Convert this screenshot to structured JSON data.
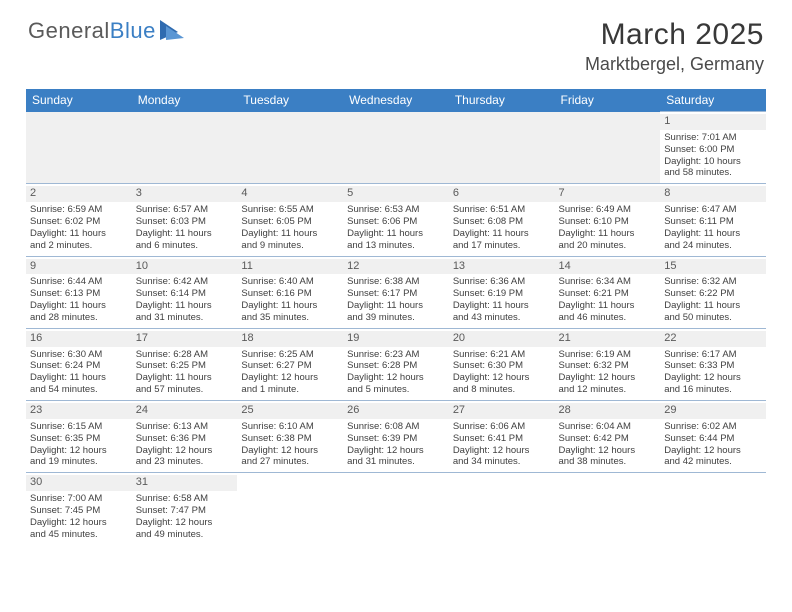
{
  "brand": {
    "name1": "General",
    "name2": "Blue"
  },
  "title": "March 2025",
  "location": "Marktbergel, Germany",
  "colors": {
    "header_bg": "#3b7fc4",
    "header_text": "#ffffff",
    "daynum_bg": "#f0f0f0",
    "border": "#9fb8d4",
    "text": "#404040"
  },
  "weekdays": [
    "Sunday",
    "Monday",
    "Tuesday",
    "Wednesday",
    "Thursday",
    "Friday",
    "Saturday"
  ],
  "first_day_col": 6,
  "days": [
    {
      "n": "1",
      "sunrise": "Sunrise: 7:01 AM",
      "sunset": "Sunset: 6:00 PM",
      "day1": "Daylight: 10 hours",
      "day2": "and 58 minutes."
    },
    {
      "n": "2",
      "sunrise": "Sunrise: 6:59 AM",
      "sunset": "Sunset: 6:02 PM",
      "day1": "Daylight: 11 hours",
      "day2": "and 2 minutes."
    },
    {
      "n": "3",
      "sunrise": "Sunrise: 6:57 AM",
      "sunset": "Sunset: 6:03 PM",
      "day1": "Daylight: 11 hours",
      "day2": "and 6 minutes."
    },
    {
      "n": "4",
      "sunrise": "Sunrise: 6:55 AM",
      "sunset": "Sunset: 6:05 PM",
      "day1": "Daylight: 11 hours",
      "day2": "and 9 minutes."
    },
    {
      "n": "5",
      "sunrise": "Sunrise: 6:53 AM",
      "sunset": "Sunset: 6:06 PM",
      "day1": "Daylight: 11 hours",
      "day2": "and 13 minutes."
    },
    {
      "n": "6",
      "sunrise": "Sunrise: 6:51 AM",
      "sunset": "Sunset: 6:08 PM",
      "day1": "Daylight: 11 hours",
      "day2": "and 17 minutes."
    },
    {
      "n": "7",
      "sunrise": "Sunrise: 6:49 AM",
      "sunset": "Sunset: 6:10 PM",
      "day1": "Daylight: 11 hours",
      "day2": "and 20 minutes."
    },
    {
      "n": "8",
      "sunrise": "Sunrise: 6:47 AM",
      "sunset": "Sunset: 6:11 PM",
      "day1": "Daylight: 11 hours",
      "day2": "and 24 minutes."
    },
    {
      "n": "9",
      "sunrise": "Sunrise: 6:44 AM",
      "sunset": "Sunset: 6:13 PM",
      "day1": "Daylight: 11 hours",
      "day2": "and 28 minutes."
    },
    {
      "n": "10",
      "sunrise": "Sunrise: 6:42 AM",
      "sunset": "Sunset: 6:14 PM",
      "day1": "Daylight: 11 hours",
      "day2": "and 31 minutes."
    },
    {
      "n": "11",
      "sunrise": "Sunrise: 6:40 AM",
      "sunset": "Sunset: 6:16 PM",
      "day1": "Daylight: 11 hours",
      "day2": "and 35 minutes."
    },
    {
      "n": "12",
      "sunrise": "Sunrise: 6:38 AM",
      "sunset": "Sunset: 6:17 PM",
      "day1": "Daylight: 11 hours",
      "day2": "and 39 minutes."
    },
    {
      "n": "13",
      "sunrise": "Sunrise: 6:36 AM",
      "sunset": "Sunset: 6:19 PM",
      "day1": "Daylight: 11 hours",
      "day2": "and 43 minutes."
    },
    {
      "n": "14",
      "sunrise": "Sunrise: 6:34 AM",
      "sunset": "Sunset: 6:21 PM",
      "day1": "Daylight: 11 hours",
      "day2": "and 46 minutes."
    },
    {
      "n": "15",
      "sunrise": "Sunrise: 6:32 AM",
      "sunset": "Sunset: 6:22 PM",
      "day1": "Daylight: 11 hours",
      "day2": "and 50 minutes."
    },
    {
      "n": "16",
      "sunrise": "Sunrise: 6:30 AM",
      "sunset": "Sunset: 6:24 PM",
      "day1": "Daylight: 11 hours",
      "day2": "and 54 minutes."
    },
    {
      "n": "17",
      "sunrise": "Sunrise: 6:28 AM",
      "sunset": "Sunset: 6:25 PM",
      "day1": "Daylight: 11 hours",
      "day2": "and 57 minutes."
    },
    {
      "n": "18",
      "sunrise": "Sunrise: 6:25 AM",
      "sunset": "Sunset: 6:27 PM",
      "day1": "Daylight: 12 hours",
      "day2": "and 1 minute."
    },
    {
      "n": "19",
      "sunrise": "Sunrise: 6:23 AM",
      "sunset": "Sunset: 6:28 PM",
      "day1": "Daylight: 12 hours",
      "day2": "and 5 minutes."
    },
    {
      "n": "20",
      "sunrise": "Sunrise: 6:21 AM",
      "sunset": "Sunset: 6:30 PM",
      "day1": "Daylight: 12 hours",
      "day2": "and 8 minutes."
    },
    {
      "n": "21",
      "sunrise": "Sunrise: 6:19 AM",
      "sunset": "Sunset: 6:32 PM",
      "day1": "Daylight: 12 hours",
      "day2": "and 12 minutes."
    },
    {
      "n": "22",
      "sunrise": "Sunrise: 6:17 AM",
      "sunset": "Sunset: 6:33 PM",
      "day1": "Daylight: 12 hours",
      "day2": "and 16 minutes."
    },
    {
      "n": "23",
      "sunrise": "Sunrise: 6:15 AM",
      "sunset": "Sunset: 6:35 PM",
      "day1": "Daylight: 12 hours",
      "day2": "and 19 minutes."
    },
    {
      "n": "24",
      "sunrise": "Sunrise: 6:13 AM",
      "sunset": "Sunset: 6:36 PM",
      "day1": "Daylight: 12 hours",
      "day2": "and 23 minutes."
    },
    {
      "n": "25",
      "sunrise": "Sunrise: 6:10 AM",
      "sunset": "Sunset: 6:38 PM",
      "day1": "Daylight: 12 hours",
      "day2": "and 27 minutes."
    },
    {
      "n": "26",
      "sunrise": "Sunrise: 6:08 AM",
      "sunset": "Sunset: 6:39 PM",
      "day1": "Daylight: 12 hours",
      "day2": "and 31 minutes."
    },
    {
      "n": "27",
      "sunrise": "Sunrise: 6:06 AM",
      "sunset": "Sunset: 6:41 PM",
      "day1": "Daylight: 12 hours",
      "day2": "and 34 minutes."
    },
    {
      "n": "28",
      "sunrise": "Sunrise: 6:04 AM",
      "sunset": "Sunset: 6:42 PM",
      "day1": "Daylight: 12 hours",
      "day2": "and 38 minutes."
    },
    {
      "n": "29",
      "sunrise": "Sunrise: 6:02 AM",
      "sunset": "Sunset: 6:44 PM",
      "day1": "Daylight: 12 hours",
      "day2": "and 42 minutes."
    },
    {
      "n": "30",
      "sunrise": "Sunrise: 7:00 AM",
      "sunset": "Sunset: 7:45 PM",
      "day1": "Daylight: 12 hours",
      "day2": "and 45 minutes."
    },
    {
      "n": "31",
      "sunrise": "Sunrise: 6:58 AM",
      "sunset": "Sunset: 7:47 PM",
      "day1": "Daylight: 12 hours",
      "day2": "and 49 minutes."
    }
  ]
}
